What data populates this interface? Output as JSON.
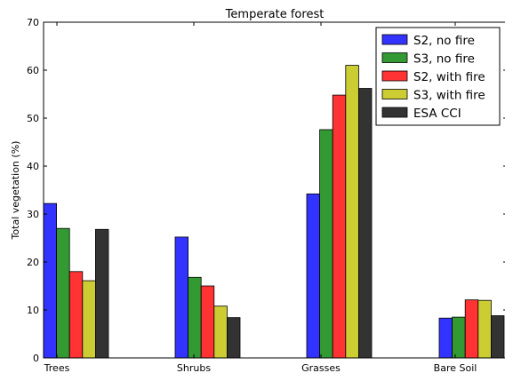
{
  "chart_data": {
    "type": "bar",
    "title": "Temperate forest",
    "xlabel": "",
    "ylabel": "Total vegetation (%)",
    "ylim": [
      0,
      70
    ],
    "yticks": [
      0,
      10,
      20,
      30,
      40,
      50,
      60,
      70
    ],
    "grid": false,
    "legend_position": "top-right",
    "categories": [
      "Trees",
      "Shrubs",
      "Grasses",
      "Bare Soil"
    ],
    "series": [
      {
        "name": "S2, no fire",
        "color": "#3333ff",
        "values": [
          32.2,
          25.2,
          34.2,
          8.3
        ]
      },
      {
        "name": "S3, no fire",
        "color": "#339933",
        "values": [
          27.0,
          16.8,
          47.6,
          8.5
        ]
      },
      {
        "name": "S2, with fire",
        "color": "#ff3333",
        "values": [
          18.0,
          15.0,
          54.8,
          12.1
        ]
      },
      {
        "name": "S3, with fire",
        "color": "#cccc33",
        "values": [
          16.1,
          10.8,
          61.0,
          12.0
        ]
      },
      {
        "name": "ESA CCI",
        "color": "#333333",
        "values": [
          26.8,
          8.4,
          56.2,
          8.8
        ]
      }
    ]
  }
}
